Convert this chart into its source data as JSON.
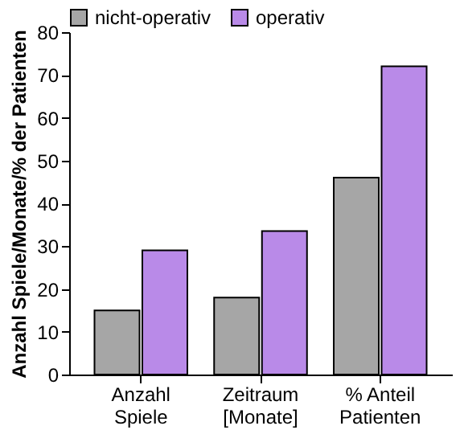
{
  "chart_data": {
    "type": "bar",
    "ylabel": "Anzahl Spiele/Monate/% der Patienten",
    "categories": [
      "Anzahl\nSpiele",
      "Zeitraum\n[Monate]",
      "% Anteil\nPatienten"
    ],
    "series": [
      {
        "name": "nicht-operativ",
        "color": "#a6a6a6",
        "values": [
          15,
          18,
          46
        ]
      },
      {
        "name": "operativ",
        "color": "#b98ae8",
        "values": [
          29,
          33.5,
          72
        ]
      }
    ],
    "ylim": [
      0,
      80
    ],
    "yticks": [
      0,
      10,
      20,
      30,
      40,
      50,
      60,
      70,
      80
    ],
    "grid": false,
    "legend": "top"
  }
}
